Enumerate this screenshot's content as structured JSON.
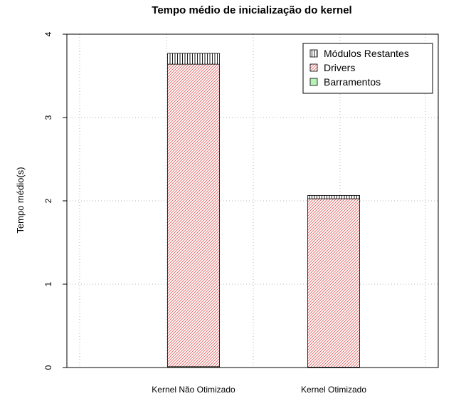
{
  "chart_data": {
    "type": "bar",
    "stacked": true,
    "title": "Tempo médio de inicialização do kernel",
    "xlabel": "",
    "ylabel": "Tempo médio(s)",
    "ylim": [
      0,
      4
    ],
    "yticks": [
      "0",
      "1",
      "2",
      "3",
      "4"
    ],
    "grid": true,
    "legend_position": "top-right",
    "categories": [
      "Kernel Não Otimizado",
      "Kernel Otimizado"
    ],
    "series": [
      {
        "name": "Barramentos",
        "values": [
          0.01,
          0.005
        ],
        "color": "#b9f2b9",
        "pattern": "solid"
      },
      {
        "name": "Drivers",
        "values": [
          3.63,
          2.02
        ],
        "color": "#e06060",
        "pattern": "diagonal"
      },
      {
        "name": "Módulos Restantes",
        "values": [
          0.13,
          0.04
        ],
        "color": "#000000",
        "pattern": "vertical"
      }
    ],
    "legend_order": [
      "Módulos Restantes",
      "Drivers",
      "Barramentos"
    ]
  }
}
